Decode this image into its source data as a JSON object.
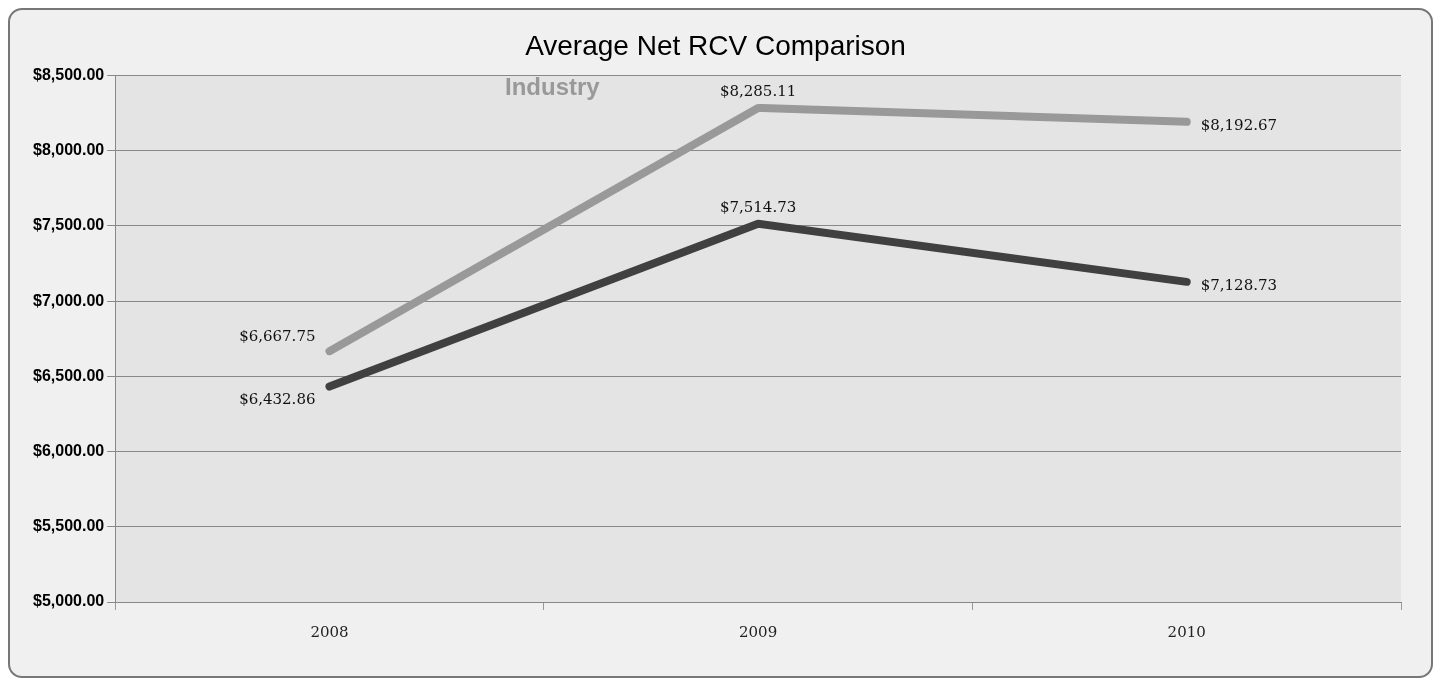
{
  "chart_data": {
    "type": "line",
    "title": "Average Net RCV Comparison",
    "categories": [
      "2008",
      "2009",
      "2010"
    ],
    "series": [
      {
        "name": "Industry",
        "color": "#999999",
        "values": [
          6667.75,
          8285.11,
          8192.67
        ],
        "value_labels": [
          "$6,667.75",
          "$8,285.11",
          "$8,192.67"
        ]
      },
      {
        "color": "#404040",
        "values": [
          6432.86,
          7514.73,
          7128.73
        ],
        "value_labels": [
          "$6,432.86",
          "$7,514.73",
          "$7,128.73"
        ]
      }
    ],
    "ylim": [
      5000,
      8500
    ],
    "yticks": [
      {
        "value": 5000,
        "label": "$5,000.00"
      },
      {
        "value": 5500,
        "label": "$5,500.00"
      },
      {
        "value": 6000,
        "label": "$6,000.00"
      },
      {
        "value": 6500,
        "label": "$6,500.00"
      },
      {
        "value": 7000,
        "label": "$7,000.00"
      },
      {
        "value": 7500,
        "label": "$7,500.00"
      },
      {
        "value": 8000,
        "label": "$8,000.00"
      },
      {
        "value": 8500,
        "label": "$8,500.00"
      }
    ],
    "grid": "y",
    "legend": false,
    "marker": "none",
    "line_style": "solid"
  }
}
